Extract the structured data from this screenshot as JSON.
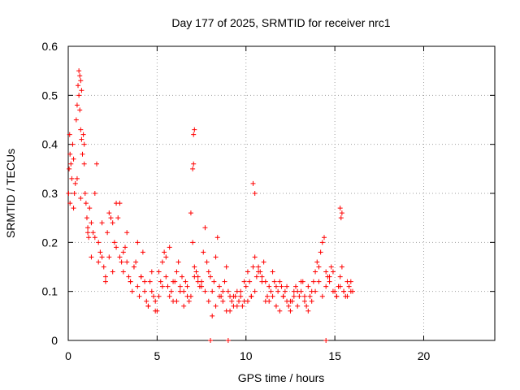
{
  "chart_data": {
    "type": "scatter",
    "title": "Day 177 of 2025, SRMTID for receiver nrc1",
    "xlabel": "GPS time / hours",
    "ylabel": "SRMTID / TECUs",
    "xlim": [
      0,
      24
    ],
    "ylim": [
      0,
      0.6
    ],
    "xticks": [
      0,
      5,
      10,
      15,
      20
    ],
    "xtick_labels": [
      "0",
      "5",
      "10",
      "15",
      "20"
    ],
    "yticks": [
      0,
      0.1,
      0.2,
      0.3,
      0.4,
      0.5,
      0.6
    ],
    "ytick_labels": [
      "0",
      "0.1",
      "0.2",
      "0.3",
      "0.4",
      "0.5",
      "0.6"
    ],
    "grid": true,
    "marker": "plus",
    "series": [
      {
        "name": "SRMTID",
        "color": "#ff0000",
        "x": [
          0.02,
          0.05,
          0.08,
          0.1,
          0.15,
          0.2,
          0.25,
          0.3,
          0.35,
          0.4,
          0.45,
          0.5,
          0.55,
          0.6,
          0.65,
          0.7,
          0.75,
          0.8,
          0.85,
          0.9,
          0.95,
          1.0,
          1.05,
          1.1,
          1.15,
          1.2,
          1.3,
          1.4,
          1.5,
          1.6,
          1.7,
          1.8,
          1.9,
          2.0,
          2.1,
          2.2,
          2.3,
          2.4,
          2.5,
          2.6,
          2.7,
          2.8,
          2.9,
          3.0,
          3.1,
          3.2,
          3.3,
          3.4,
          3.5,
          3.6,
          3.7,
          3.8,
          3.9,
          4.0,
          4.1,
          4.2,
          4.3,
          4.4,
          4.5,
          4.6,
          4.7,
          4.8,
          4.9,
          5.0,
          5.1,
          5.2,
          5.3,
          5.4,
          5.5,
          5.6,
          5.7,
          5.8,
          5.9,
          6.0,
          6.1,
          6.2,
          6.3,
          6.4,
          6.5,
          6.6,
          6.7,
          6.8,
          6.9,
          7.0,
          7.05,
          7.1,
          7.2,
          7.3,
          7.4,
          7.5,
          7.6,
          7.7,
          7.8,
          7.9,
          8.0,
          8.1,
          8.2,
          8.3,
          8.4,
          8.5,
          8.6,
          8.7,
          8.8,
          8.9,
          9.0,
          9.1,
          9.2,
          9.3,
          9.4,
          9.5,
          9.6,
          9.7,
          9.8,
          9.9,
          10.0,
          10.1,
          10.2,
          10.3,
          10.4,
          10.5,
          10.6,
          10.7,
          10.8,
          10.9,
          11.0,
          11.1,
          11.2,
          11.3,
          11.4,
          11.5,
          11.6,
          11.7,
          11.8,
          11.9,
          12.0,
          12.1,
          12.2,
          12.3,
          12.4,
          12.5,
          12.6,
          12.7,
          12.8,
          12.9,
          13.0,
          13.1,
          13.2,
          13.3,
          13.4,
          13.5,
          13.6,
          13.7,
          13.8,
          13.9,
          14.0,
          14.1,
          14.2,
          14.3,
          14.4,
          14.5,
          14.6,
          14.7,
          14.8,
          14.9,
          15.0,
          15.1,
          15.2,
          15.3,
          15.4,
          15.5,
          15.6,
          15.7,
          15.8,
          15.9,
          16.0,
          0.1,
          0.3,
          0.5,
          0.7,
          0.9,
          1.1,
          1.3,
          1.5,
          1.7,
          1.9,
          2.1,
          2.3,
          2.5,
          2.7,
          2.9,
          3.1,
          3.3,
          3.5,
          3.7,
          3.9,
          4.1,
          4.3,
          4.5,
          4.7,
          4.9,
          5.1,
          5.3,
          5.5,
          5.7,
          5.9,
          6.1,
          6.3,
          6.5,
          6.7,
          6.9,
          7.1,
          7.3,
          7.5,
          7.7,
          7.9,
          8.1,
          8.3,
          8.5,
          8.7,
          8.9,
          9.1,
          9.3,
          9.5,
          9.7,
          9.9,
          10.1,
          10.3,
          10.5,
          10.7,
          10.9,
          11.1,
          11.3,
          11.5,
          11.7,
          11.9,
          12.1,
          12.3,
          12.5,
          12.7,
          12.9,
          13.1,
          13.3,
          13.5,
          13.7,
          13.9,
          14.1,
          14.3,
          14.5,
          14.7,
          14.9,
          15.1,
          15.3,
          15.5,
          15.7,
          15.9,
          0.6,
          0.65,
          0.7,
          0.75,
          7.05,
          7.1,
          7.0,
          10.4,
          10.5,
          15.3,
          15.4,
          15.35,
          8.0,
          9.0,
          14.5
        ],
        "y": [
          0.3,
          0.35,
          0.42,
          0.38,
          0.36,
          0.33,
          0.4,
          0.37,
          0.3,
          0.32,
          0.45,
          0.48,
          0.52,
          0.5,
          0.47,
          0.43,
          0.41,
          0.38,
          0.42,
          0.36,
          0.3,
          0.28,
          0.25,
          0.23,
          0.21,
          0.27,
          0.24,
          0.22,
          0.3,
          0.36,
          0.2,
          0.18,
          0.17,
          0.15,
          0.13,
          0.22,
          0.26,
          0.25,
          0.24,
          0.2,
          0.28,
          0.25,
          0.17,
          0.16,
          0.14,
          0.19,
          0.22,
          0.13,
          0.12,
          0.1,
          0.15,
          0.16,
          0.11,
          0.09,
          0.13,
          0.18,
          0.1,
          0.08,
          0.07,
          0.12,
          0.14,
          0.09,
          0.06,
          0.06,
          0.09,
          0.12,
          0.16,
          0.18,
          0.13,
          0.11,
          0.09,
          0.1,
          0.08,
          0.12,
          0.14,
          0.16,
          0.11,
          0.13,
          0.1,
          0.12,
          0.09,
          0.08,
          0.26,
          0.2,
          0.42,
          0.15,
          0.14,
          0.13,
          0.11,
          0.12,
          0.18,
          0.23,
          0.16,
          0.14,
          0.13,
          0.1,
          0.12,
          0.17,
          0.21,
          0.11,
          0.09,
          0.08,
          0.12,
          0.15,
          0.1,
          0.09,
          0.08,
          0.07,
          0.09,
          0.1,
          0.08,
          0.09,
          0.07,
          0.08,
          0.11,
          0.14,
          0.12,
          0.09,
          0.15,
          0.17,
          0.13,
          0.15,
          0.14,
          0.13,
          0.16,
          0.12,
          0.09,
          0.08,
          0.1,
          0.14,
          0.12,
          0.11,
          0.1,
          0.12,
          0.11,
          0.09,
          0.1,
          0.08,
          0.07,
          0.06,
          0.08,
          0.09,
          0.11,
          0.1,
          0.09,
          0.1,
          0.12,
          0.08,
          0.07,
          0.06,
          0.09,
          0.1,
          0.12,
          0.14,
          0.16,
          0.15,
          0.18,
          0.2,
          0.21,
          0.14,
          0.13,
          0.12,
          0.15,
          0.14,
          0.1,
          0.09,
          0.11,
          0.13,
          0.15,
          0.1,
          0.09,
          0.12,
          0.11,
          0.1,
          0.1,
          0.28,
          0.27,
          0.33,
          0.29,
          0.4,
          0.22,
          0.17,
          0.21,
          0.16,
          0.24,
          0.12,
          0.17,
          0.14,
          0.19,
          0.28,
          0.18,
          0.16,
          0.12,
          0.15,
          0.2,
          0.13,
          0.12,
          0.07,
          0.1,
          0.08,
          0.14,
          0.11,
          0.17,
          0.19,
          0.12,
          0.08,
          0.1,
          0.07,
          0.11,
          0.09,
          0.13,
          0.12,
          0.11,
          0.1,
          0.08,
          0.05,
          0.07,
          0.09,
          0.1,
          0.06,
          0.06,
          0.09,
          0.07,
          0.1,
          0.12,
          0.08,
          0.09,
          0.1,
          0.14,
          0.12,
          0.08,
          0.11,
          0.09,
          0.07,
          0.06,
          0.09,
          0.11,
          0.08,
          0.1,
          0.07,
          0.12,
          0.09,
          0.11,
          0.08,
          0.1,
          0.12,
          0.09,
          0.11,
          0.13,
          0.1,
          0.09,
          0.11,
          0.1,
          0.09,
          0.12,
          0.55,
          0.54,
          0.53,
          0.51,
          0.36,
          0.43,
          0.35,
          0.32,
          0.3,
          0.27,
          0.26,
          0.25,
          0.0,
          0.0,
          0.0
        ]
      }
    ]
  }
}
